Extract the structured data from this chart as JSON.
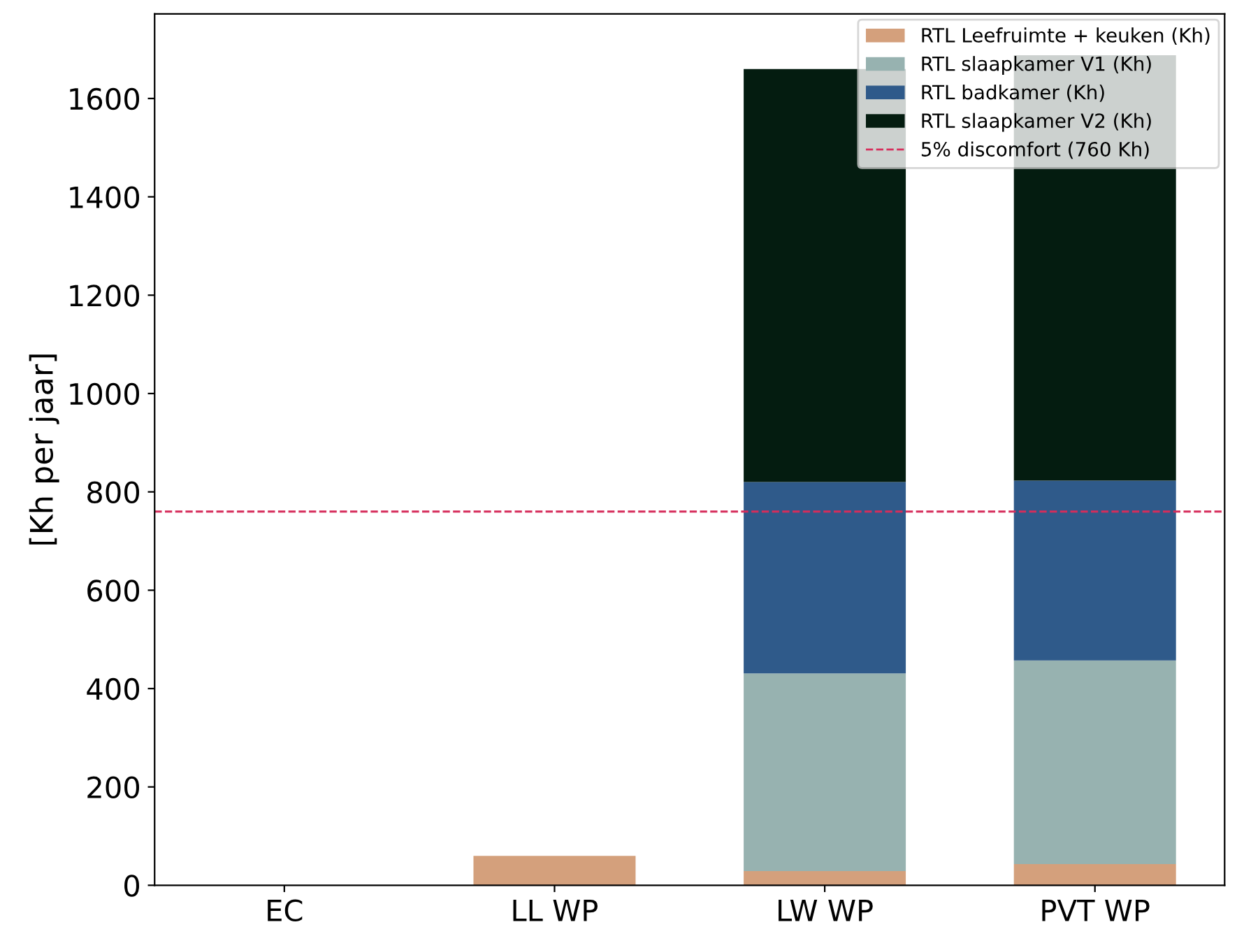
{
  "chart_data": {
    "type": "bar",
    "stacked": true,
    "ylabel": "[Kh per jaar]",
    "categories": [
      "EC",
      "LL WP",
      "LW WP",
      "PVT WP"
    ],
    "series": [
      {
        "name": "RTL Leefruimte + keuken (Kh)",
        "color": "#d4a07c",
        "values": [
          0,
          60,
          29,
          43
        ]
      },
      {
        "name": "RTL slaapkamer V1 (Kh)",
        "color": "#97b2b0",
        "values": [
          0,
          0,
          402,
          414
        ]
      },
      {
        "name": "RTL badkamer (Kh)",
        "color": "#2f5a8a",
        "values": [
          0,
          0,
          389,
          366
        ]
      },
      {
        "name": "RTL slaapkamer V2 (Kh)",
        "color": "#041c10",
        "values": [
          0,
          0,
          840,
          865
        ]
      }
    ],
    "ref_lines": [
      {
        "axis": "y",
        "value": 760,
        "label": "5% discomfort (760 Kh)",
        "color": "#d62d5b",
        "line_style": "dashed"
      }
    ],
    "ylim": [
      0,
      1772
    ],
    "yticks": [
      0,
      200,
      400,
      600,
      800,
      1000,
      1200,
      1400,
      1600
    ],
    "grid": false,
    "legend": "top right"
  }
}
